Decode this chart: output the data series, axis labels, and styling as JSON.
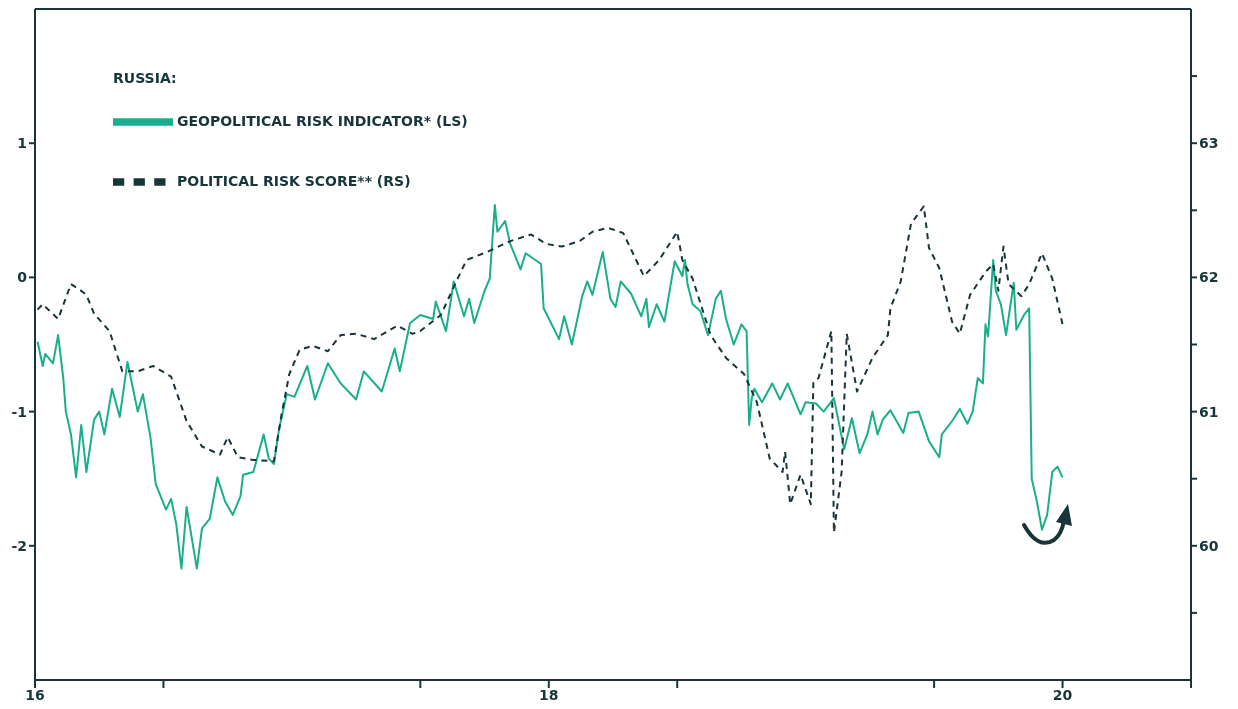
{
  "chart_data": {
    "type": "line",
    "legend_title": "RUSSIA:",
    "legend": "top left",
    "marker": "none",
    "xlim": [
      16,
      20.5
    ],
    "xticks": [
      16,
      {
        "value": 16.5,
        "label": null
      },
      {
        "value": 17.5,
        "label": null
      },
      18,
      {
        "value": 18.5,
        "label": null
      },
      {
        "value": 19.5,
        "label": null
      },
      20,
      {
        "value": 20.5,
        "label": null
      }
    ],
    "ylim": [
      -3,
      2
    ],
    "yticks": [
      -2,
      -1,
      0,
      1
    ],
    "y2lim": [
      59,
      64
    ],
    "y2ticks": [
      {
        "value": 59.5,
        "label": null
      },
      60,
      {
        "value": 60.5,
        "label": null
      },
      61,
      {
        "value": 61.5,
        "label": null
      },
      62,
      {
        "value": 62.5,
        "label": null
      },
      63,
      {
        "value": 63.5,
        "label": null
      }
    ],
    "series": [
      {
        "name": "GEOPOLITICAL RISK INDICATOR* (LS)",
        "color": "#1aaf8b",
        "line_style": "solid",
        "x": [
          16.01,
          16.03,
          16.04,
          16.07,
          16.09,
          16.11,
          16.12,
          16.14,
          16.16,
          16.18,
          16.2,
          16.23,
          16.25,
          16.27,
          16.3,
          16.33,
          16.36,
          16.4,
          16.42,
          16.45,
          16.47,
          16.51,
          16.53,
          16.55,
          16.57,
          16.59,
          16.63,
          16.65,
          16.68,
          16.71,
          16.74,
          16.77,
          16.8,
          16.81,
          16.85,
          16.89,
          16.91,
          16.93,
          16.95,
          16.98,
          17.01,
          17.06,
          17.09,
          17.14,
          17.19,
          17.25,
          17.28,
          17.35,
          17.4,
          17.42,
          17.46,
          17.5,
          17.55,
          17.56,
          17.6,
          17.63,
          17.67,
          17.69,
          17.71,
          17.75,
          17.77,
          17.79,
          17.8,
          17.83,
          17.85,
          17.89,
          17.91,
          17.97,
          17.98,
          18.04,
          18.06,
          18.09,
          18.13,
          18.15,
          18.17,
          18.21,
          18.24,
          18.26,
          18.28,
          18.32,
          18.36,
          18.38,
          18.39,
          18.42,
          18.45,
          18.49,
          18.52,
          18.53,
          18.54,
          18.56,
          18.59,
          18.62,
          18.65,
          18.67,
          18.69,
          18.72,
          18.75,
          18.77,
          18.78,
          18.79,
          18.8,
          18.83,
          18.87,
          18.9,
          18.93,
          18.98,
          19.0,
          19.04,
          19.07,
          19.11,
          19.15,
          19.18,
          19.21,
          19.24,
          19.26,
          19.28,
          19.3,
          19.33,
          19.38,
          19.4,
          19.44,
          19.48,
          19.52,
          19.53,
          19.57,
          19.6,
          19.63,
          19.65,
          19.67,
          19.69,
          19.7,
          19.71,
          19.73,
          19.74,
          19.76,
          19.78,
          19.81,
          19.82,
          19.85,
          19.87,
          19.88,
          19.9,
          19.92,
          19.94,
          19.96,
          19.98,
          20.0
        ],
        "values": [
          -0.48,
          -0.66,
          -0.57,
          -0.64,
          -0.43,
          -0.75,
          -1.0,
          -1.17,
          -1.49,
          -1.1,
          -1.45,
          -1.06,
          -1.0,
          -1.17,
          -0.83,
          -1.04,
          -0.63,
          -1.0,
          -0.87,
          -1.2,
          -1.54,
          -1.73,
          -1.65,
          -1.84,
          -2.17,
          -1.71,
          -2.17,
          -1.87,
          -1.8,
          -1.49,
          -1.67,
          -1.77,
          -1.63,
          -1.47,
          -1.45,
          -1.17,
          -1.35,
          -1.39,
          -1.13,
          -0.87,
          -0.89,
          -0.66,
          -0.91,
          -0.64,
          -0.79,
          -0.91,
          -0.7,
          -0.85,
          -0.53,
          -0.7,
          -0.34,
          -0.28,
          -0.31,
          -0.18,
          -0.4,
          -0.03,
          -0.29,
          -0.16,
          -0.34,
          -0.1,
          -0.01,
          0.54,
          0.34,
          0.42,
          0.25,
          0.06,
          0.18,
          0.1,
          -0.23,
          -0.46,
          -0.29,
          -0.5,
          -0.14,
          -0.03,
          -0.13,
          0.19,
          -0.16,
          -0.22,
          -0.03,
          -0.12,
          -0.29,
          -0.16,
          -0.37,
          -0.2,
          -0.33,
          0.12,
          0.01,
          0.13,
          -0.05,
          -0.2,
          -0.25,
          -0.43,
          -0.16,
          -0.1,
          -0.31,
          -0.5,
          -0.35,
          -0.4,
          -1.1,
          -0.9,
          -0.83,
          -0.93,
          -0.79,
          -0.91,
          -0.79,
          -1.02,
          -0.93,
          -0.94,
          -1.0,
          -0.9,
          -1.28,
          -1.05,
          -1.31,
          -1.17,
          -1.0,
          -1.17,
          -1.06,
          -0.99,
          -1.16,
          -1.01,
          -1.0,
          -1.22,
          -1.34,
          -1.17,
          -1.07,
          -0.98,
          -1.09,
          -1.0,
          -0.75,
          -0.79,
          -0.35,
          -0.44,
          0.13,
          -0.1,
          -0.2,
          -0.43,
          -0.04,
          -0.39,
          -0.28,
          -0.23,
          -1.5,
          -1.67,
          -1.88,
          -1.77,
          -1.45,
          -1.41,
          -1.49
        ]
      },
      {
        "name": "POLITICAL RISK SCORE** (RS)",
        "color": "#17353a",
        "line_style": "dashed",
        "axis": "y2",
        "x": [
          16.01,
          16.03,
          16.09,
          16.14,
          16.18,
          16.2,
          16.23,
          16.29,
          16.34,
          16.4,
          16.46,
          16.53,
          16.59,
          16.65,
          16.72,
          16.75,
          16.79,
          16.85,
          16.93,
          16.96,
          16.99,
          17.03,
          17.08,
          17.14,
          17.19,
          17.25,
          17.32,
          17.41,
          17.47,
          17.5,
          17.58,
          17.64,
          17.68,
          17.76,
          17.85,
          17.93,
          17.99,
          18.05,
          18.12,
          18.17,
          18.23,
          18.29,
          18.37,
          18.43,
          18.5,
          18.52,
          18.56,
          18.63,
          18.69,
          18.76,
          18.81,
          18.86,
          18.91,
          18.92,
          18.94,
          18.98,
          19.02,
          19.03,
          19.05,
          19.1,
          19.11,
          19.14,
          19.16,
          19.2,
          19.26,
          19.32,
          19.33,
          19.37,
          19.41,
          19.46,
          19.48,
          19.52,
          19.57,
          19.6,
          19.64,
          19.7,
          19.73,
          19.75,
          19.77,
          19.79,
          19.84,
          19.87,
          19.92,
          19.96,
          20.0
        ],
        "values": [
          61.76,
          61.8,
          61.69,
          61.95,
          61.9,
          61.87,
          61.73,
          61.6,
          61.3,
          61.3,
          61.34,
          61.26,
          60.93,
          60.74,
          60.68,
          60.81,
          60.66,
          60.64,
          60.63,
          60.98,
          61.28,
          61.46,
          61.49,
          61.45,
          61.57,
          61.58,
          61.54,
          61.64,
          61.58,
          61.6,
          61.72,
          61.97,
          62.13,
          62.19,
          62.27,
          62.32,
          62.25,
          62.23,
          62.27,
          62.34,
          62.37,
          62.33,
          62.01,
          62.13,
          62.34,
          62.13,
          61.99,
          61.57,
          61.4,
          61.28,
          61.07,
          60.65,
          60.55,
          60.7,
          60.31,
          60.53,
          60.31,
          61.22,
          61.25,
          61.6,
          60.1,
          60.55,
          61.58,
          61.15,
          61.4,
          61.57,
          61.77,
          61.97,
          62.4,
          62.53,
          62.22,
          62.07,
          61.67,
          61.58,
          61.87,
          62.04,
          62.1,
          61.9,
          62.23,
          61.95,
          61.86,
          61.95,
          62.18,
          61.99,
          61.65
        ]
      }
    ]
  }
}
